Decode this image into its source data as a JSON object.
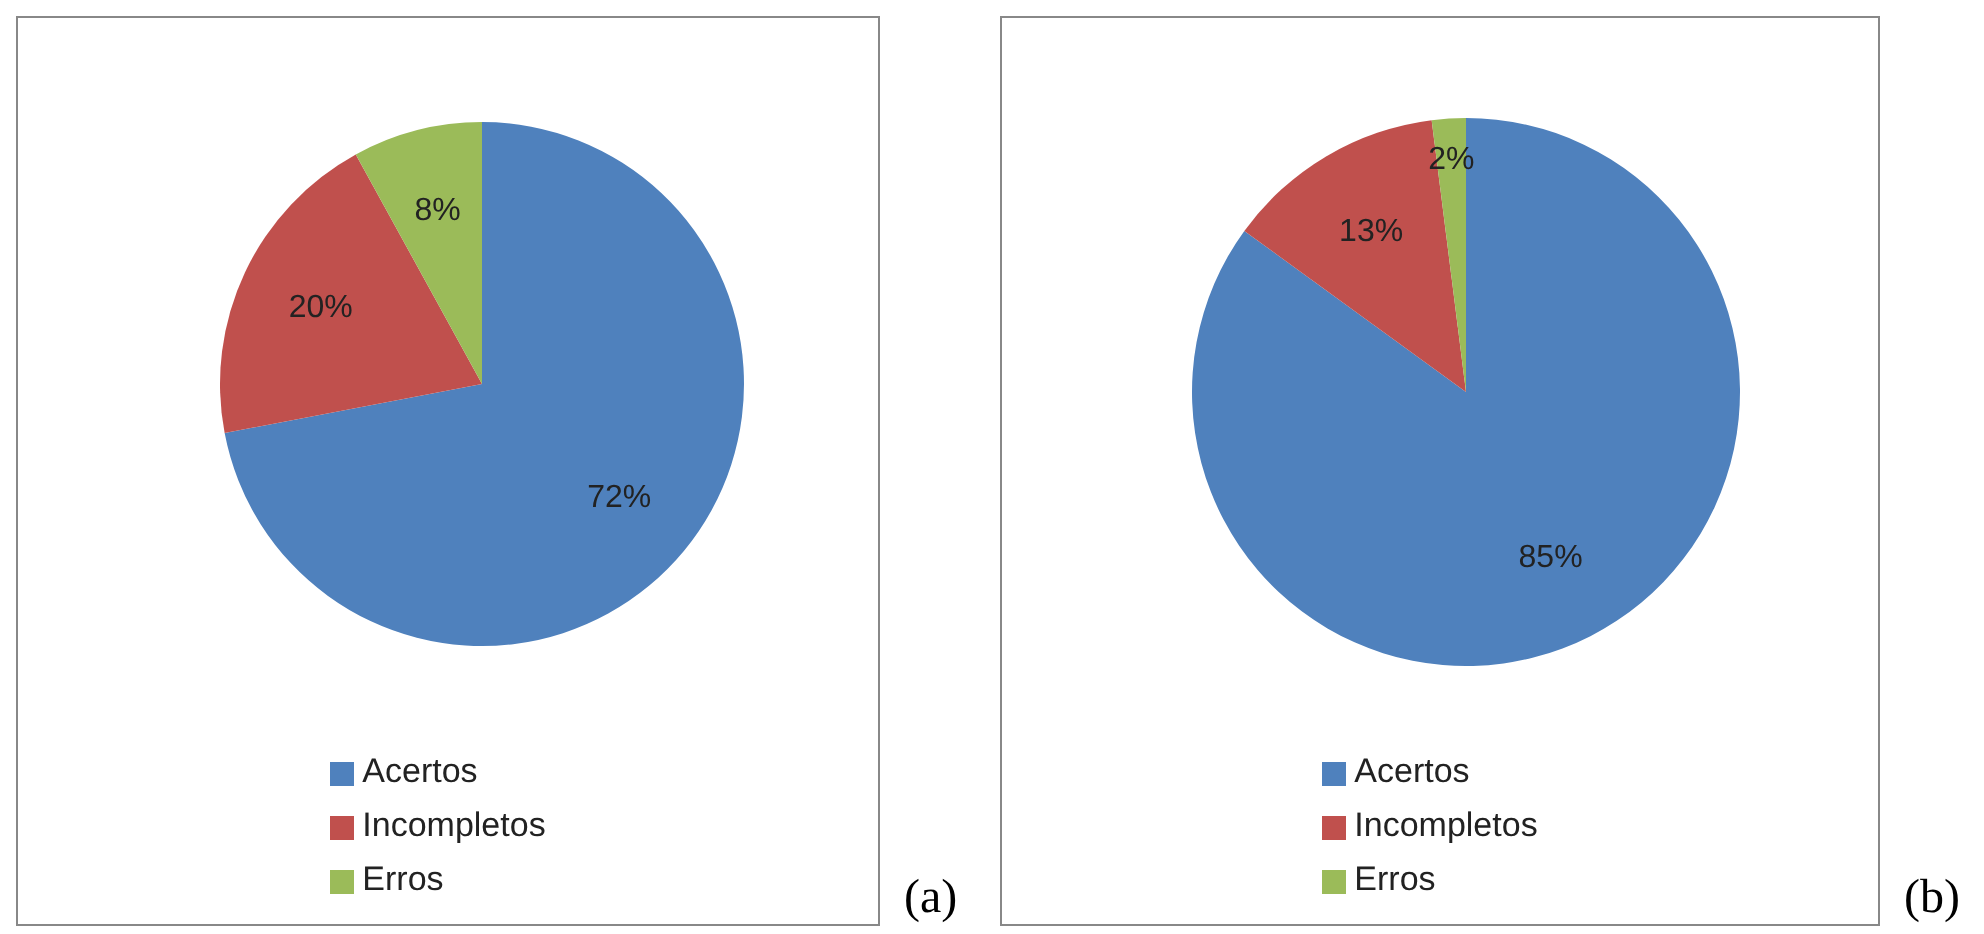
{
  "chart_data": [
    {
      "type": "pie",
      "categories": [
        "Acertos",
        "Incompletos",
        "Erros"
      ],
      "values": [
        72,
        20,
        8
      ],
      "colors": [
        "#4f81bd",
        "#c0504d",
        "#9bbb59"
      ],
      "value_labels": [
        "72%",
        "20%",
        "8%"
      ],
      "legend": "bottom",
      "annotations": [
        "(a)"
      ]
    },
    {
      "type": "pie",
      "categories": [
        "Acertos",
        "Incompletos",
        "Erros"
      ],
      "values": [
        85,
        13,
        2
      ],
      "colors": [
        "#4f81bd",
        "#c0504d",
        "#9bbb59"
      ],
      "value_labels": [
        "85%",
        "13%",
        "2%"
      ],
      "legend": "bottom",
      "annotations": [
        "(b)"
      ]
    }
  ]
}
